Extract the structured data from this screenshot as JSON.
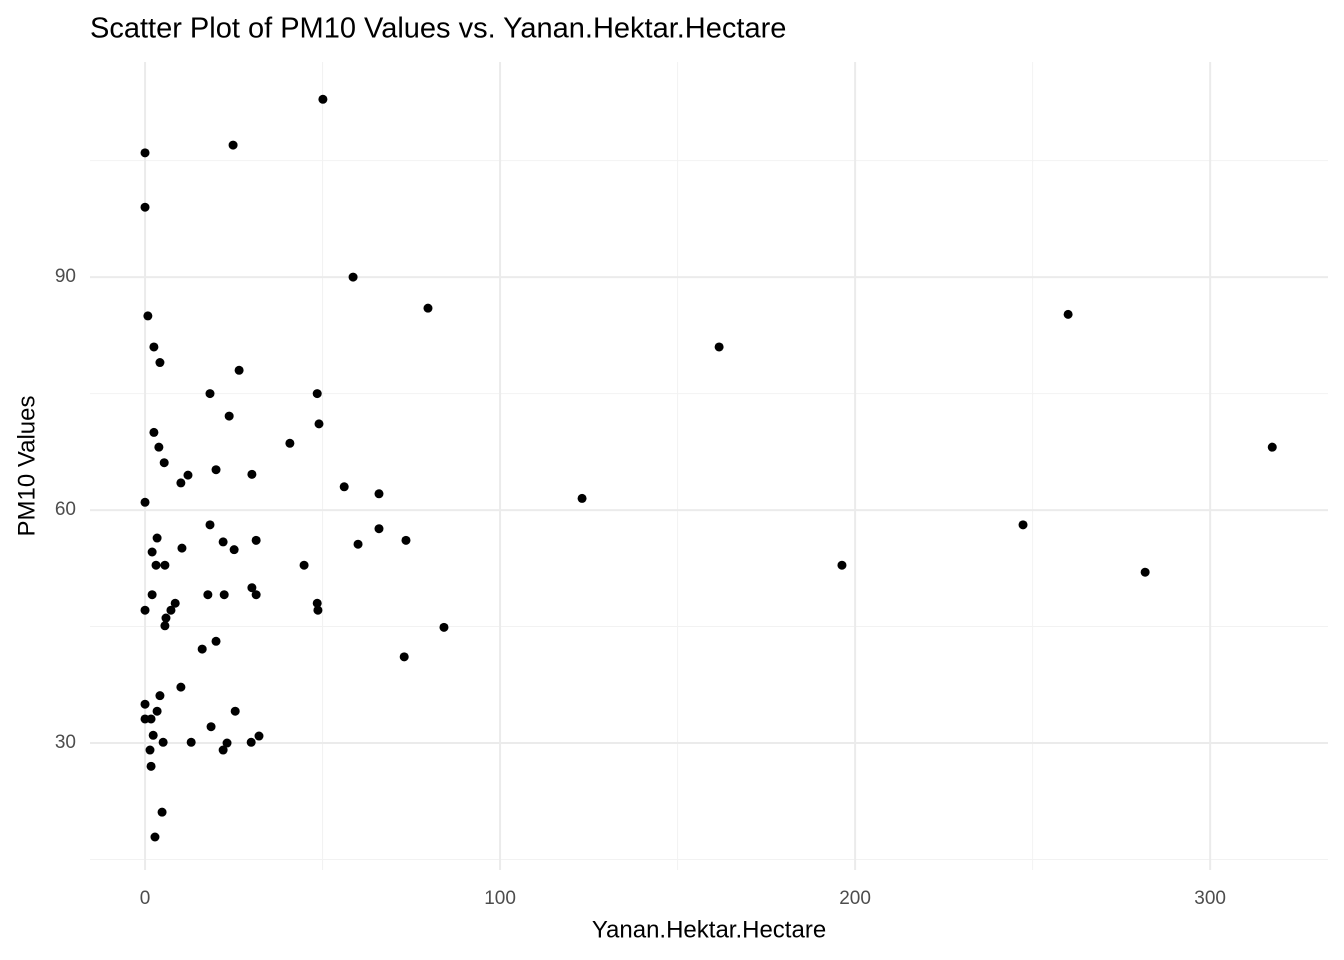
{
  "chart_data": {
    "type": "scatter",
    "title": "Scatter Plot of PM10 Values vs. Yanan.Hektar.Hectare",
    "x_label": "Yanan.Hektar.Hectare",
    "y_label": "PM10 Values",
    "color": "#000000",
    "grid": true,
    "xlim": [
      -15.5,
      333.2
    ],
    "ylim": [
      13.65,
      117.7
    ],
    "xticks": [
      0,
      100,
      200,
      300
    ],
    "yticks": [
      30,
      60,
      90
    ],
    "x_minor_grid": [
      50,
      150,
      250
    ],
    "y_minor_grid": [
      15,
      45,
      75,
      105
    ],
    "x": [
      50.1,
      24.8,
      0,
      0,
      58.6,
      79.7,
      260,
      0.8,
      161.7,
      2.5,
      4.2,
      26.5,
      18.3,
      48.5,
      23.7,
      49,
      2.5,
      40.8,
      3.9,
      317.5,
      5.4,
      12.1,
      30.1,
      20,
      10.1,
      56.1,
      65.9,
      0,
      123.1,
      18.3,
      247.3,
      65.9,
      3.4,
      31.3,
      73.5,
      22,
      60,
      10.4,
      25.1,
      2,
      3.1,
      5.6,
      44.8,
      196.3,
      281.7,
      30.1,
      31.3,
      2,
      17.7,
      22.3,
      8.5,
      48.5,
      7.3,
      0,
      48.7,
      5.9,
      5.6,
      84.2,
      20,
      16.1,
      73,
      10.1,
      4.2,
      0,
      25.4,
      3.4,
      0,
      1.7,
      2.3,
      32.1,
      18.6,
      5.1,
      13,
      23.1,
      29.9,
      1.4,
      22,
      1.7,
      4.8,
      2.8
    ],
    "values": [
      112.9,
      107,
      106,
      99,
      90,
      86,
      85.2,
      85,
      81,
      81,
      79,
      78,
      75,
      75,
      72.1,
      71.1,
      70,
      68.6,
      68.1,
      68.1,
      66.1,
      64.5,
      64.6,
      65.2,
      63.5,
      63,
      62.1,
      61,
      61.5,
      58.1,
      58.1,
      57.6,
      56.4,
      56.1,
      56.1,
      55.9,
      55.6,
      55.1,
      54.9,
      54.6,
      52.9,
      52.9,
      52.9,
      52.9,
      52,
      50,
      49.1,
      49.1,
      49.1,
      49.1,
      48,
      48,
      47.1,
      47.1,
      47.1,
      46.1,
      45.1,
      44.9,
      43.1,
      42.1,
      41.1,
      37.2,
      36.1,
      35,
      34.1,
      34.1,
      33.1,
      33.1,
      31,
      30.9,
      32.1,
      30.1,
      30.1,
      30,
      30.1,
      29.1,
      29.1,
      27,
      21.1,
      17.9
    ]
  }
}
